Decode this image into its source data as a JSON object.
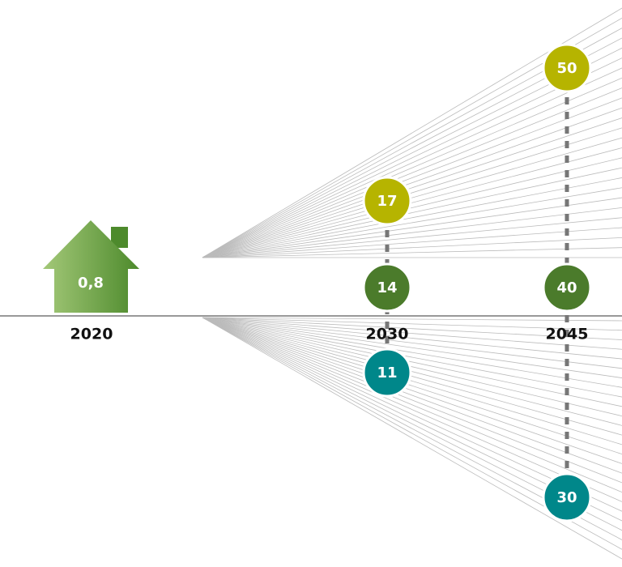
{
  "start": {
    "year": "2020",
    "value": "0,8"
  },
  "points": [
    {
      "year": "2030",
      "high": "17",
      "mid": "14",
      "low": "11"
    },
    {
      "year": "2045",
      "high": "50",
      "mid": "40",
      "low": "30"
    }
  ]
}
